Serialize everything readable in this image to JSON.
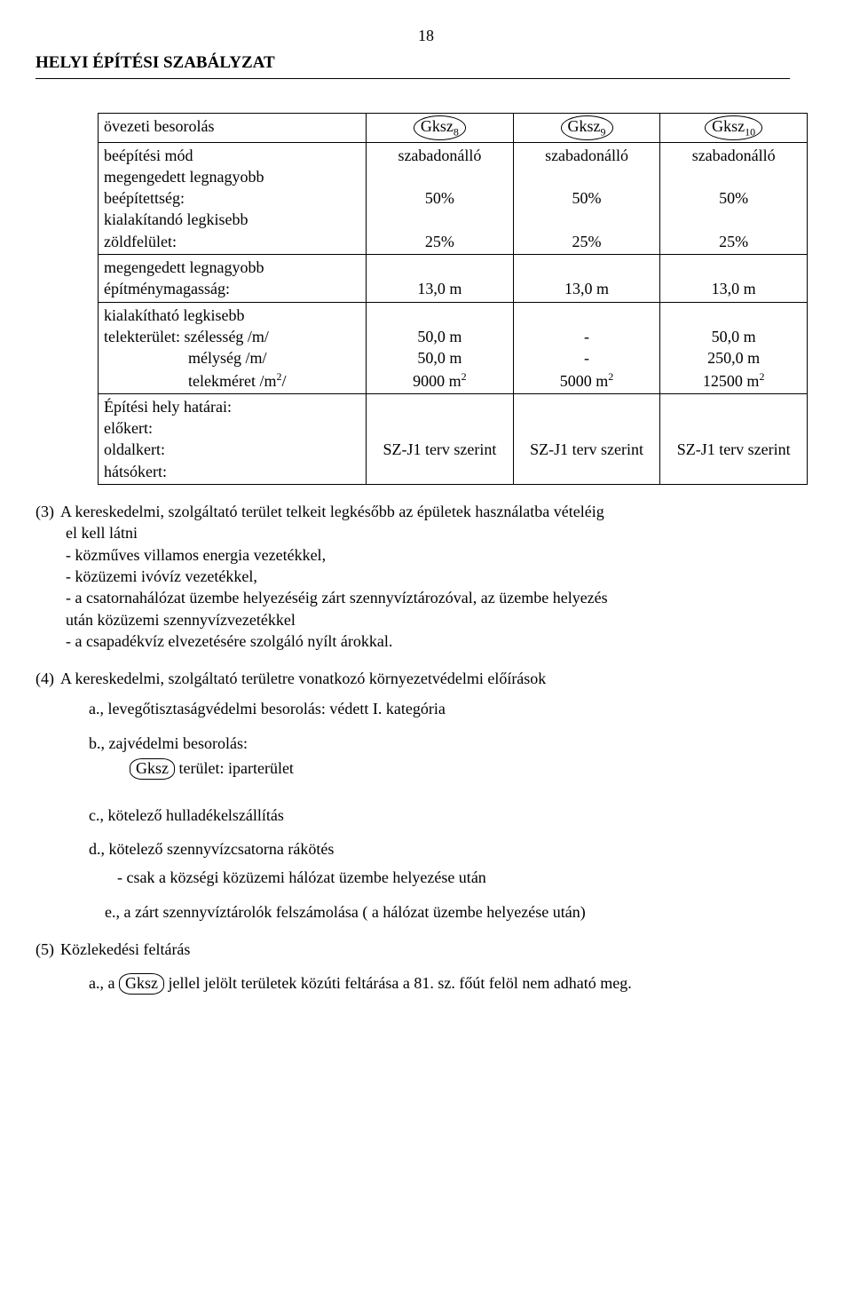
{
  "page_number": "18",
  "header": "HELYI ÉPÍTÉSI SZABÁLYZAT",
  "table": {
    "row1_label": "övezeti besorolás",
    "zone8": "Gksz",
    "zone8_sub": "8",
    "zone9": "Gksz",
    "zone9_sub": "9",
    "zone10": "Gksz",
    "zone10_sub": "10",
    "row2_l1": "beépítési mód",
    "row2_l2": "megengedett legnagyobb",
    "row2_l3": "beépítettség:",
    "row2_l4": "kialakítandó legkisebb",
    "row2_l5": "zöldfelület:",
    "r2c1_a": "szabadonálló",
    "r2c1_b": "50%",
    "r2c1_c": "25%",
    "r2c2_a": "szabadonálló",
    "r2c2_b": "50%",
    "r2c2_c": "25%",
    "r2c3_a": "szabadonálló",
    "r2c3_b": "50%",
    "r2c3_c": "25%",
    "row3_l1": "megengedett legnagyobb",
    "row3_l2": "építménymagasság:",
    "r3c1": "13,0 m",
    "r3c2": "13,0 m",
    "r3c3": "13,0 m",
    "row4_l1": "kialakítható legkisebb",
    "row4_l2": "telekterület: szélesség /m/",
    "row4_l3": "mélység /m/",
    "row4_l4": "telekméret /m",
    "row4_l4_sup": "2",
    "row4_l4_b": "/",
    "r4c1_a": "50,0 m",
    "r4c1_b": "50,0 m",
    "r4c1_c": "9000 m",
    "r4c1_c_sup": "2",
    "r4c2_a": "-",
    "r4c2_b": "-",
    "r4c2_c": "5000 m",
    "r4c2_c_sup": "2",
    "r4c3_a": "50,0 m",
    "r4c3_b": "250,0 m",
    "r4c3_c": "12500 m",
    "r4c3_c_sup": "2",
    "row5_l1": "Építési hely határai:",
    "row5_l2": "előkert:",
    "row5_l3": "oldalkert:",
    "row5_l4": "hátsókert:",
    "r5c1": "SZ-J1 terv szerint",
    "r5c2": "SZ-J1 terv szerint",
    "r5c3": "SZ-J1 terv szerint"
  },
  "p3": {
    "num": "(3)",
    "line1": "A kereskedelmi, szolgáltató terület telkeit legkésőbb az épületek használatba vételéig",
    "line2": "el kell látni",
    "b1": "- közműves villamos energia vezetékkel,",
    "b2": "- közüzemi ivóvíz vezetékkel,",
    "b3a": "- a csatornahálózat üzembe helyezéséig zárt szennyvíztározóval, az üzembe helyezés",
    "b3b": "  után közüzemi szennyvízvezetékkel",
    "b4": "- a csapadékvíz elvezetésére szolgáló nyílt árokkal."
  },
  "p4": {
    "num": "(4)",
    "line": "A kereskedelmi, szolgáltató területre vonatkozó környezetvédelmi előírások",
    "a": "a., levegőtisztaságvédelmi besorolás: védett I. kategória",
    "b": "b., zajvédelmi besorolás:",
    "b_chip": "Gksz",
    "b_after": " terület:  iparterület",
    "c": "c.,  kötelező hulladékelszállítás",
    "d": "d.,  kötelező szennyvízcsatorna rákötés",
    "d_inner": "- csak a községi közüzemi hálózat üzembe helyezése után",
    "e": "e.,  a zárt szennyvíztárolók felszámolása ( a hálózat üzembe helyezése után)"
  },
  "p5": {
    "num": "(5)",
    "line": "Közlekedési feltárás",
    "a_pre": "a., a ",
    "a_chip": "Gksz",
    "a_post": " jellel jelölt területek közúti feltárása a 81. sz. főút felöl nem adható meg."
  }
}
